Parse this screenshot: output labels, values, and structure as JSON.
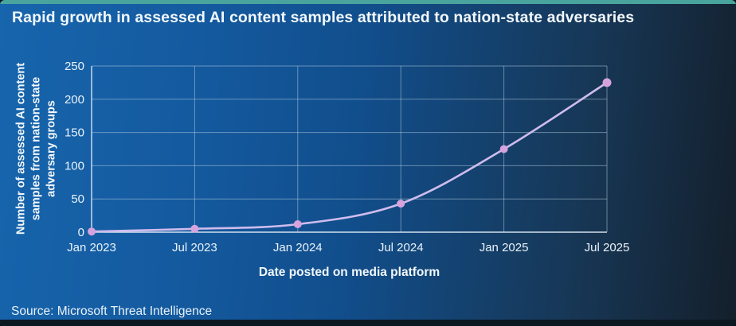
{
  "header": {
    "title": "Rapid growth in assessed AI content samples attributed to nation-state adversaries"
  },
  "footer": {
    "source": "Source: Microsoft Threat Intelligence"
  },
  "theme": {
    "accent_teal": "#4AA49E",
    "background_left": "#1765AD",
    "background_right": "#141F2B",
    "line": "#CFBCEE",
    "marker": "#D7A3DD",
    "grid": "#BCD3E6",
    "axis": "#DCE9F4",
    "text": "#F2F8FC"
  },
  "chart_data": {
    "type": "line",
    "title": "Rapid growth in assessed AI content samples attributed to nation-state adversaries",
    "x": [
      "Jan 2023",
      "Jul 2023",
      "Jan 2024",
      "Jul 2024",
      "Jan 2025",
      "Jul 2025"
    ],
    "values": [
      1,
      5,
      12,
      43,
      125,
      225
    ],
    "series": [
      {
        "name": "Assessed AI content samples from nation-state adversary groups",
        "values": [
          1,
          5,
          12,
          43,
          125,
          225
        ]
      }
    ],
    "xlabel": "Date posted on media platform",
    "ylabel": "Number of assessed AI content samples from nation-state adversary groups",
    "ylabel_lines": [
      "Number of assessed AI content",
      "samples from nation-state",
      "adversary groups"
    ],
    "ylim": [
      0,
      250
    ],
    "yticks": [
      0,
      50,
      100,
      150,
      200,
      250
    ],
    "grid": true,
    "legend": "none",
    "marker_style": "circle",
    "line_smoothing": "spline"
  }
}
